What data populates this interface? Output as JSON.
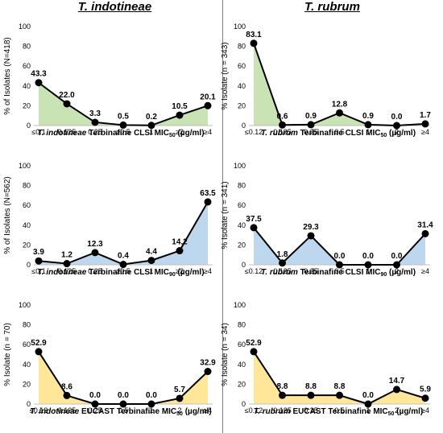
{
  "columns": {
    "left_title": "T. indotineae",
    "right_title": "T. rubrum"
  },
  "chart_data": [
    {
      "type": "area",
      "color": "#c9e3b4",
      "categories": [
        "≤0.1",
        "0.125",
        "0.25",
        "≥0.5",
        "1",
        "≥2",
        "≥4"
      ],
      "values": [
        43.3,
        22.0,
        3.3,
        0.5,
        0.2,
        10.5,
        20.1
      ],
      "value_labels": [
        "43.3",
        "22.0",
        "3.3",
        "0.5",
        "0.2",
        "10.5",
        "20.1"
      ],
      "ylabel": "% of Isolates (N=418)",
      "xlabel_italic": "T. indotineae",
      "xlabel_rest": " Terbinafine CLSI MIC",
      "xlabel_sub": "50",
      "xlabel_unit": " (µg/ml)",
      "ylim": [
        0,
        100
      ],
      "yticks": [
        "0",
        "20",
        "40",
        "60",
        "80",
        "100"
      ]
    },
    {
      "type": "area",
      "color": "#c9e3b4",
      "categories": [
        "≤0.12",
        "0.125",
        "0.25",
        "0.5",
        "1",
        "2",
        "≥4"
      ],
      "values": [
        83.1,
        0.6,
        0.9,
        12.8,
        0.9,
        0.0,
        1.7
      ],
      "value_labels": [
        "83.1",
        "0.6",
        "0.9",
        "12.8",
        "0.9",
        "0.0",
        "1.7"
      ],
      "ylabel": "% Isolate (n = 343)",
      "xlabel_italic": "T. rubrum",
      "xlabel_rest": " Terbinafine CLSI MIC",
      "xlabel_sub": "50",
      "xlabel_unit": " (µg/ml)",
      "ylim": [
        0,
        100
      ],
      "yticks": [
        "0",
        "20",
        "40",
        "60",
        "80",
        "100"
      ]
    },
    {
      "type": "area",
      "color": "#bdd7ee",
      "categories": [
        "≤0.1",
        "0.125",
        "0.25",
        "≥0.5",
        "1",
        "≥2",
        "≥4"
      ],
      "values": [
        3.9,
        1.2,
        12.3,
        0.4,
        4.4,
        14.2,
        63.5
      ],
      "value_labels": [
        "3.9",
        "1.2",
        "12.3",
        "0.4",
        "4.4",
        "14.2",
        "63.5"
      ],
      "ylabel": "% of Isolates (N=562)",
      "xlabel_italic": "T. indotineae",
      "xlabel_rest": " Terbinafine CLSI MIC",
      "xlabel_sub": "90",
      "xlabel_unit": " (µg/ml)",
      "ylim": [
        0,
        100
      ],
      "yticks": [
        "0",
        "20",
        "40",
        "60",
        "80",
        "100"
      ]
    },
    {
      "type": "area",
      "color": "#bdd7ee",
      "categories": [
        "≤0.12",
        "0.125",
        "0.25",
        "0.5",
        "1",
        "2",
        "≥4"
      ],
      "values": [
        37.5,
        1.8,
        29.3,
        0.0,
        0.0,
        0.0,
        31.4
      ],
      "value_labels": [
        "37.5",
        "1.8",
        "29.3",
        "0.0",
        "0.0",
        "0.0",
        "31.4"
      ],
      "ylabel": "% Isolate (n = 341)",
      "xlabel_italic": "T. rubrum",
      "xlabel_rest": " Terbinafine CLSI MIC",
      "xlabel_sub": "90",
      "xlabel_unit": " (µg/ml)",
      "ylim": [
        0,
        100
      ],
      "yticks": [
        "0",
        "20",
        "40",
        "60",
        "80",
        "100"
      ]
    },
    {
      "type": "area",
      "color": "#ffe699",
      "categories": [
        "≤0.12",
        "0.125",
        "0.25",
        "0.5",
        "1",
        "2",
        "≥4"
      ],
      "values": [
        52.9,
        8.6,
        0.0,
        0.0,
        0.0,
        5.7,
        32.9
      ],
      "value_labels": [
        "52.9",
        "8.6",
        "0.0",
        "0.0",
        "0.0",
        "5.7",
        "32.9"
      ],
      "ylabel": "% Isolate (n = 70)",
      "xlabel_italic": "T. indotineae",
      "xlabel_rest": " EUCAST Terbinafine MIC",
      "xlabel_sub": "50",
      "xlabel_unit": " (µg/ml)",
      "ylim": [
        0,
        100
      ],
      "yticks": [
        "0",
        "20",
        "40",
        "60",
        "80",
        "100"
      ]
    },
    {
      "type": "area",
      "color": "#ffe699",
      "categories": [
        "≤0.12",
        "0.125",
        "0.25",
        "0.5",
        "1",
        "2",
        "≥4"
      ],
      "values": [
        52.9,
        8.8,
        8.8,
        8.8,
        0.0,
        14.7,
        5.9
      ],
      "value_labels": [
        "52.9",
        "8.8",
        "8.8",
        "8.8",
        "0.0",
        "14.7",
        "5.9"
      ],
      "ylabel": "% Isolate (n = 34)",
      "xlabel_italic": "T. rubrum",
      "xlabel_rest": " EUCAST Terbinafine MIC",
      "xlabel_sub": "50",
      "xlabel_unit": " (µg/ml)",
      "ylim": [
        0,
        100
      ],
      "yticks": [
        "0",
        "20",
        "40",
        "60",
        "80",
        "100"
      ]
    }
  ]
}
